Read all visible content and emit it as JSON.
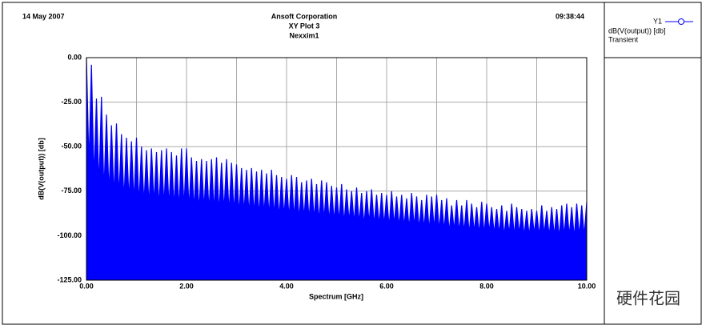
{
  "chart_data": {
    "type": "area",
    "date": "14 May 2007",
    "time": "09:38:44",
    "title": "Ansoft Corporation",
    "subtitle": "XY Plot 3",
    "design": "Nexxim1",
    "x_label": "Spectrum [GHz]",
    "y_label": "dB(V(output)) [db]",
    "watermark": "硬件花园",
    "legend": {
      "trace": "Y1",
      "expression": "dB(V(output)) [db]",
      "source": "Transient"
    },
    "xlim": [
      0,
      10
    ],
    "ylim": [
      -125,
      0
    ],
    "xticks": [
      {
        "value": 0,
        "label": "0.00"
      },
      {
        "value": 2,
        "label": "2.00"
      },
      {
        "value": 4,
        "label": "4.00"
      },
      {
        "value": 6,
        "label": "6.00"
      },
      {
        "value": 8,
        "label": "8.00"
      },
      {
        "value": 10,
        "label": "10.00"
      }
    ],
    "x_minor_grid": [
      1,
      3,
      5,
      7,
      9
    ],
    "yticks": [
      {
        "value": 0,
        "label": "0.00"
      },
      {
        "value": -25,
        "label": "-25.00"
      },
      {
        "value": -50,
        "label": "-50.00"
      },
      {
        "value": -75,
        "label": "-75.00"
      },
      {
        "value": -100,
        "label": "-100.00"
      },
      {
        "value": -125,
        "label": "-125.00"
      }
    ],
    "grid": true,
    "series": [
      {
        "name": "Y1",
        "color": "#0000ff",
        "x": [
          0,
          0.05,
          0.1,
          0.15,
          0.2,
          0.25,
          0.3,
          0.35,
          0.4,
          0.45,
          0.5,
          0.55,
          0.6,
          0.65,
          0.7,
          0.75,
          0.8,
          0.85,
          0.9,
          0.95,
          1,
          1.05,
          1.1,
          1.15,
          1.2,
          1.25,
          1.3,
          1.35,
          1.4,
          1.45,
          1.5,
          1.55,
          1.6,
          1.65,
          1.7,
          1.75,
          1.8,
          1.85,
          1.9,
          1.95,
          2,
          2.05,
          2.1,
          2.15,
          2.2,
          2.25,
          2.3,
          2.35,
          2.4,
          2.45,
          2.5,
          2.55,
          2.6,
          2.65,
          2.7,
          2.75,
          2.8,
          2.85,
          2.9,
          2.95,
          3,
          3.05,
          3.1,
          3.15,
          3.2,
          3.25,
          3.3,
          3.35,
          3.4,
          3.45,
          3.5,
          3.55,
          3.6,
          3.65,
          3.7,
          3.75,
          3.8,
          3.85,
          3.9,
          3.95,
          4,
          4.05,
          4.1,
          4.15,
          4.2,
          4.25,
          4.3,
          4.35,
          4.4,
          4.45,
          4.5,
          4.55,
          4.6,
          4.65,
          4.7,
          4.75,
          4.8,
          4.85,
          4.9,
          4.95,
          5,
          5.05,
          5.1,
          5.15,
          5.2,
          5.25,
          5.3,
          5.35,
          5.4,
          5.45,
          5.5,
          5.55,
          5.6,
          5.65,
          5.7,
          5.75,
          5.8,
          5.85,
          5.9,
          5.95,
          6,
          6.05,
          6.1,
          6.15,
          6.2,
          6.25,
          6.3,
          6.35,
          6.4,
          6.45,
          6.5,
          6.55,
          6.6,
          6.65,
          6.7,
          6.75,
          6.8,
          6.85,
          6.9,
          6.95,
          7,
          7.05,
          7.1,
          7.15,
          7.2,
          7.25,
          7.3,
          7.35,
          7.4,
          7.45,
          7.5,
          7.55,
          7.6,
          7.65,
          7.7,
          7.75,
          7.8,
          7.85,
          7.9,
          7.95,
          8,
          8.05,
          8.1,
          8.15,
          8.2,
          8.25,
          8.3,
          8.35,
          8.4,
          8.45,
          8.5,
          8.55,
          8.6,
          8.65,
          8.7,
          8.75,
          8.8,
          8.85,
          8.9,
          8.95,
          9,
          9.05,
          9.1,
          9.15,
          9.2,
          9.25,
          9.3,
          9.35,
          9.4,
          9.45,
          9.5,
          9.55,
          9.6,
          9.65,
          9.7,
          9.75,
          9.8,
          9.85,
          9.9,
          9.95,
          10
        ],
        "values": [
          0,
          -60,
          -4,
          -68,
          -23,
          -72,
          -22,
          -75,
          -32,
          -76,
          -38,
          -78,
          -37,
          -78,
          -43,
          -80,
          -45,
          -80,
          -47,
          -81,
          -45,
          -82,
          -50,
          -82,
          -52,
          -83,
          -51,
          -82,
          -53,
          -84,
          -52,
          -83,
          -51,
          -84,
          -53,
          -84,
          -55,
          -85,
          -51,
          -84,
          -51,
          -85,
          -56,
          -85,
          -58,
          -86,
          -57,
          -85,
          -58,
          -86,
          -57,
          -86,
          -56,
          -87,
          -59,
          -86,
          -57,
          -87,
          -59,
          -87,
          -60,
          -88,
          -62,
          -87,
          -63,
          -88,
          -62,
          -88,
          -64,
          -89,
          -63,
          -88,
          -65,
          -89,
          -63,
          -89,
          -66,
          -90,
          -67,
          -89,
          -68,
          -90,
          -66,
          -90,
          -67,
          -91,
          -70,
          -90,
          -69,
          -91,
          -68,
          -91,
          -71,
          -92,
          -69,
          -91,
          -70,
          -92,
          -72,
          -92,
          -73,
          -92,
          -71,
          -93,
          -74,
          -92,
          -75,
          -93,
          -73,
          -93,
          -76,
          -94,
          -75,
          -93,
          -74,
          -94,
          -77,
          -94,
          -76,
          -94,
          -77,
          -95,
          -75,
          -94,
          -78,
          -95,
          -77,
          -95,
          -79,
          -96,
          -76,
          -95,
          -78,
          -96,
          -80,
          -96,
          -77,
          -97,
          -78,
          -96,
          -77,
          -97,
          -80,
          -97,
          -79,
          -98,
          -83,
          -97,
          -80,
          -98,
          -83,
          -98,
          -80,
          -99,
          -82,
          -98,
          -84,
          -99,
          -81,
          -99,
          -82,
          -98,
          -84,
          -99,
          -85,
          -99,
          -83,
          -100,
          -86,
          -99,
          -82,
          -100,
          -84,
          -99,
          -85,
          -100,
          -86,
          -100,
          -85,
          -99,
          -86,
          -100,
          -83,
          -99,
          -86,
          -100,
          -84,
          -100,
          -85,
          -101,
          -83,
          -100,
          -82,
          -100,
          -84,
          -101,
          -82,
          -100,
          -83,
          -100,
          -81
        ]
      }
    ]
  }
}
